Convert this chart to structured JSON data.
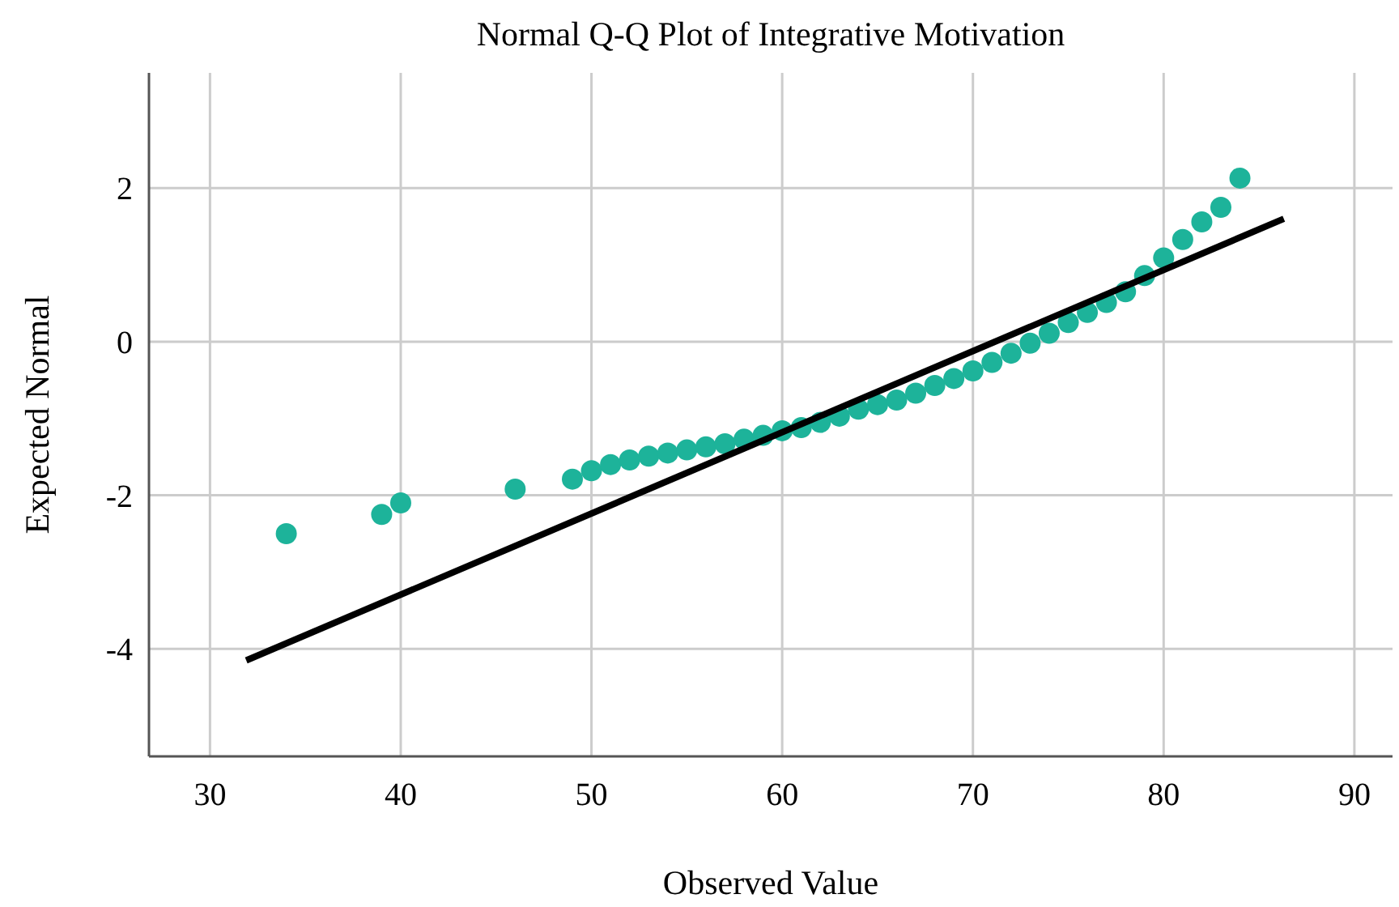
{
  "chart_data": {
    "type": "scatter",
    "title": "Normal Q-Q Plot of Integrative Motivation",
    "xlabel": "Observed Value",
    "ylabel": "Expected Normal",
    "xlim": [
      26.8,
      92
    ],
    "xticks": [
      30,
      40,
      50,
      60,
      70,
      80,
      90
    ],
    "ylim": [
      -5.4,
      3.5
    ],
    "yticks": [
      -4,
      -2,
      0,
      2
    ],
    "grid": true,
    "series": [
      {
        "marker": "circle",
        "color": "#1db39a",
        "x": [
          34,
          39,
          40,
          46,
          49,
          50,
          51,
          52,
          53,
          54,
          55,
          56,
          57,
          58,
          59,
          60,
          61,
          62,
          63,
          64,
          65,
          66,
          67,
          68,
          69,
          70,
          71,
          72,
          73,
          74,
          75,
          76,
          77,
          78,
          79,
          80,
          81,
          82,
          83,
          84
        ],
        "values": [
          -2.5,
          -2.25,
          -2.1,
          -1.92,
          -1.79,
          -1.68,
          -1.6,
          -1.54,
          -1.49,
          -1.45,
          -1.41,
          -1.37,
          -1.33,
          -1.27,
          -1.22,
          -1.16,
          -1.12,
          -1.05,
          -0.97,
          -0.88,
          -0.82,
          -0.76,
          -0.67,
          -0.57,
          -0.48,
          -0.38,
          -0.27,
          -0.15,
          -0.02,
          0.11,
          0.25,
          0.38,
          0.51,
          0.65,
          0.86,
          1.09,
          1.33,
          1.56,
          1.75,
          2.13
        ]
      },
      {
        "type": "line",
        "marker": "none",
        "color": "#000000",
        "x": [
          31.9,
          86.3
        ],
        "values": [
          -4.15,
          1.6
        ]
      }
    ]
  }
}
